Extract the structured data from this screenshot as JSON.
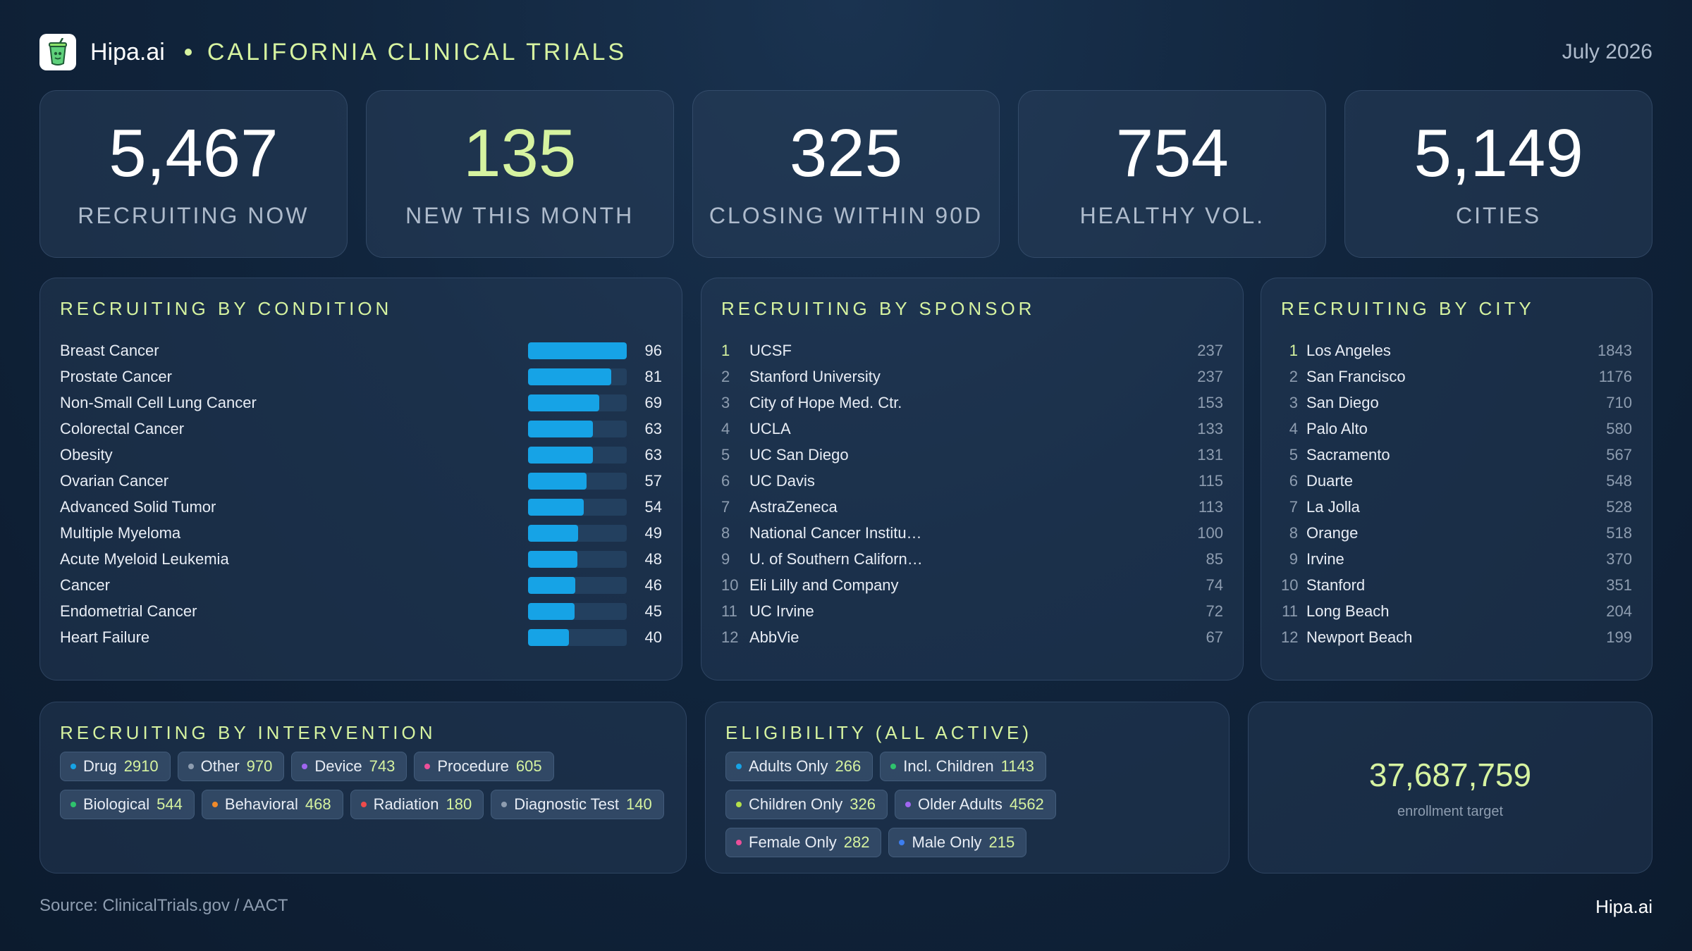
{
  "header": {
    "brand": "Hipa.ai",
    "title": "CALIFORNIA CLINICAL TRIALS",
    "date": "July 2026"
  },
  "kpis": [
    {
      "value": "5,467",
      "label": "RECRUITING NOW"
    },
    {
      "value": "135",
      "label": "NEW THIS MONTH"
    },
    {
      "value": "325",
      "label": "CLOSING WITHIN 90D"
    },
    {
      "value": "754",
      "label": "HEALTHY VOL."
    },
    {
      "value": "5,149",
      "label": "CITIES"
    }
  ],
  "condition": {
    "title": "RECRUITING BY CONDITION",
    "max": 96,
    "items": [
      {
        "name": "Breast Cancer",
        "value": 96
      },
      {
        "name": "Prostate Cancer",
        "value": 81
      },
      {
        "name": "Non-Small Cell Lung Cancer",
        "value": 69
      },
      {
        "name": "Colorectal Cancer",
        "value": 63
      },
      {
        "name": "Obesity",
        "value": 63
      },
      {
        "name": "Ovarian Cancer",
        "value": 57
      },
      {
        "name": "Advanced Solid Tumor",
        "value": 54
      },
      {
        "name": "Multiple Myeloma",
        "value": 49
      },
      {
        "name": "Acute Myeloid Leukemia",
        "value": 48
      },
      {
        "name": "Cancer",
        "value": 46
      },
      {
        "name": "Endometrial Cancer",
        "value": 45
      },
      {
        "name": "Heart Failure",
        "value": 40
      }
    ]
  },
  "sponsor": {
    "title": "RECRUITING BY SPONSOR",
    "items": [
      {
        "rank": "1",
        "name": "UCSF",
        "value": "237"
      },
      {
        "rank": "2",
        "name": "Stanford University",
        "value": "237"
      },
      {
        "rank": "3",
        "name": "City of Hope Med. Ctr.",
        "value": "153"
      },
      {
        "rank": "4",
        "name": "UCLA",
        "value": "133"
      },
      {
        "rank": "5",
        "name": "UC San Diego",
        "value": "131"
      },
      {
        "rank": "6",
        "name": "UC Davis",
        "value": "115"
      },
      {
        "rank": "7",
        "name": "AstraZeneca",
        "value": "113"
      },
      {
        "rank": "8",
        "name": "National Cancer Institu…",
        "value": "100"
      },
      {
        "rank": "9",
        "name": "U. of Southern Californ…",
        "value": "85"
      },
      {
        "rank": "10",
        "name": "Eli Lilly and Company",
        "value": "74"
      },
      {
        "rank": "11",
        "name": "UC Irvine",
        "value": "72"
      },
      {
        "rank": "12",
        "name": "AbbVie",
        "value": "67"
      }
    ]
  },
  "city": {
    "title": "RECRUITING BY CITY",
    "items": [
      {
        "rank": "1",
        "name": "Los Angeles",
        "value": "1843"
      },
      {
        "rank": "2",
        "name": "San Francisco",
        "value": "1176"
      },
      {
        "rank": "3",
        "name": "San Diego",
        "value": "710"
      },
      {
        "rank": "4",
        "name": "Palo Alto",
        "value": "580"
      },
      {
        "rank": "5",
        "name": "Sacramento",
        "value": "567"
      },
      {
        "rank": "6",
        "name": "Duarte",
        "value": "548"
      },
      {
        "rank": "7",
        "name": "La Jolla",
        "value": "528"
      },
      {
        "rank": "8",
        "name": "Orange",
        "value": "518"
      },
      {
        "rank": "9",
        "name": "Irvine",
        "value": "370"
      },
      {
        "rank": "10",
        "name": "Stanford",
        "value": "351"
      },
      {
        "rank": "11",
        "name": "Long Beach",
        "value": "204"
      },
      {
        "rank": "12",
        "name": "Newport Beach",
        "value": "199"
      }
    ]
  },
  "intervention": {
    "title": "RECRUITING BY INTERVENTION",
    "items": [
      {
        "label": "Drug",
        "value": "2910",
        "color": "#16a3e6"
      },
      {
        "label": "Other",
        "value": "970",
        "color": "#8e9db0"
      },
      {
        "label": "Device",
        "value": "743",
        "color": "#a066f0"
      },
      {
        "label": "Procedure",
        "value": "605",
        "color": "#ec4f9a"
      },
      {
        "label": "Biological",
        "value": "544",
        "color": "#2fc36d"
      },
      {
        "label": "Behavioral",
        "value": "468",
        "color": "#f08a2a"
      },
      {
        "label": "Radiation",
        "value": "180",
        "color": "#ef4b4b"
      },
      {
        "label": "Diagnostic Test",
        "value": "140",
        "color": "#8e9db0"
      }
    ]
  },
  "eligibility": {
    "title": "ELIGIBILITY (ALL ACTIVE)",
    "items": [
      {
        "label": "Adults Only",
        "value": "266",
        "color": "#16a3e6"
      },
      {
        "label": "Incl. Children",
        "value": "1143",
        "color": "#2fc36d"
      },
      {
        "label": "Children Only",
        "value": "326",
        "color": "#b4e04a"
      },
      {
        "label": "Older Adults",
        "value": "4562",
        "color": "#a066f0"
      },
      {
        "label": "Female Only",
        "value": "282",
        "color": "#ec4f9a"
      },
      {
        "label": "Male Only",
        "value": "215",
        "color": "#3d7ef0"
      }
    ]
  },
  "target": {
    "value": "37,687,759",
    "label": "enrollment target"
  },
  "footer": {
    "source": "Source: ClinicalTrials.gov / AACT",
    "brand": "Hipa.ai"
  },
  "colors": {
    "accent": "#d6f3a0",
    "bar": "#16a3e6",
    "background": "#11253d"
  }
}
